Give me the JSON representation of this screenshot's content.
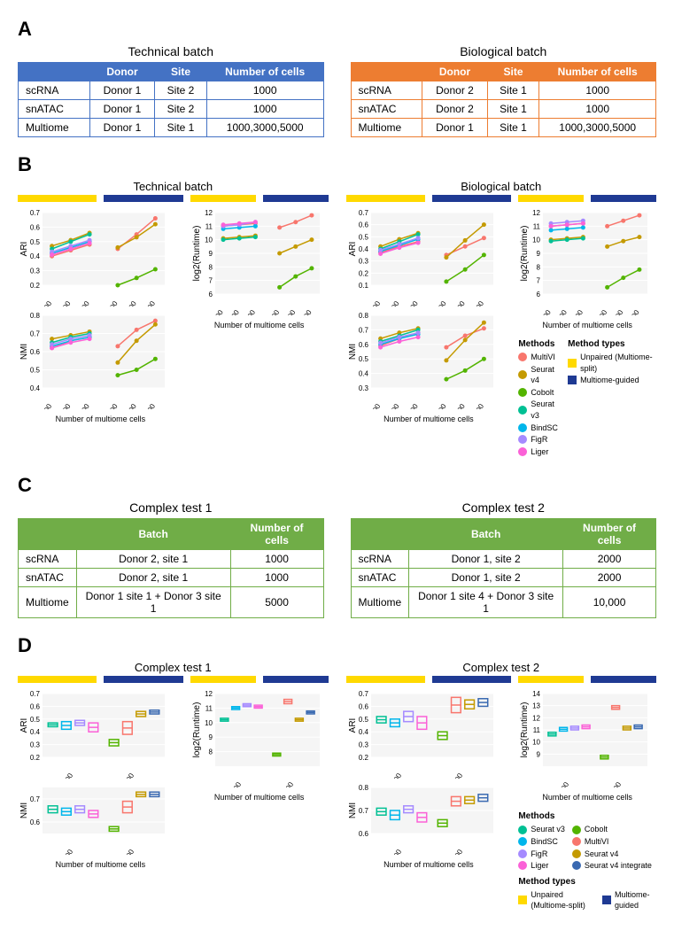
{
  "panelA": {
    "label": "A",
    "left": {
      "title": "Technical batch",
      "columns": [
        "",
        "Donor",
        "Site",
        "Number of cells"
      ],
      "rows": [
        [
          "scRNA",
          "Donor 1",
          "Site 2",
          "1000"
        ],
        [
          "snATAC",
          "Donor 1",
          "Site 2",
          "1000"
        ],
        [
          "Multiome",
          "Donor 1",
          "Site 1",
          "1000,3000,5000"
        ]
      ],
      "border_color": "#4472c4"
    },
    "right": {
      "title": "Biological batch",
      "columns": [
        "",
        "Donor",
        "Site",
        "Number of cells"
      ],
      "rows": [
        [
          "scRNA",
          "Donor 2",
          "Site 1",
          "1000"
        ],
        [
          "snATAC",
          "Donor 2",
          "Site 1",
          "1000"
        ],
        [
          "Multiome",
          "Donor 1",
          "Site 1",
          "1000,3000,5000"
        ]
      ],
      "border_color": "#ed7d31"
    }
  },
  "panelB": {
    "label": "B",
    "x_ticks": [
      "1000",
      "3000",
      "5000",
      "1000",
      "3000",
      "5000"
    ],
    "x_label": "Number of multiome cells",
    "method_types": {
      "unpaired": {
        "label": "Unpaired\n(Multiome-split)",
        "color": "#ffd900"
      },
      "guided": {
        "label": "Multiome-guided",
        "color": "#1f3a93"
      }
    },
    "methods": [
      {
        "name": "MultiVI",
        "color": "#f8766d"
      },
      {
        "name": "Seurat v4",
        "color": "#c49a00"
      },
      {
        "name": "Cobolt",
        "color": "#53b400"
      },
      {
        "name": "Seurat v3",
        "color": "#00c094"
      },
      {
        "name": "BindSC",
        "color": "#00b6eb"
      },
      {
        "name": "FigR",
        "color": "#a58aff"
      },
      {
        "name": "Liger",
        "color": "#fb61d7"
      }
    ],
    "technical": {
      "title": "Technical batch",
      "ari": {
        "ylabel": "ARI",
        "ylim": [
          0.2,
          0.7
        ],
        "yticks": [
          0.2,
          0.3,
          0.4,
          0.5,
          0.6,
          0.7
        ],
        "series": {
          "MultiVI_u": [
            0.4,
            0.44,
            0.48
          ],
          "MultiVI_g": [
            0.45,
            0.55,
            0.66
          ],
          "Seurat v4_u": [
            0.47,
            0.51,
            0.56
          ],
          "Seurat v4_g": [
            0.46,
            0.53,
            0.62
          ],
          "Seurat v3_u": [
            0.45,
            0.5,
            0.55
          ],
          "BindSC_u": [
            0.42,
            0.46,
            0.5
          ],
          "FigR_u": [
            0.43,
            0.47,
            0.51
          ],
          "Liger_u": [
            0.41,
            0.45,
            0.49
          ],
          "Cobolt_g": [
            0.2,
            0.25,
            0.31
          ]
        }
      },
      "nmi": {
        "ylabel": "NMI",
        "ylim": [
          0.4,
          0.8
        ],
        "yticks": [
          0.4,
          0.5,
          0.6,
          0.7,
          0.8
        ],
        "series": {
          "MultiVI_u": [
            0.62,
            0.66,
            0.68
          ],
          "MultiVI_g": [
            0.63,
            0.72,
            0.77
          ],
          "Seurat v4_u": [
            0.67,
            0.69,
            0.71
          ],
          "Seurat v4_g": [
            0.54,
            0.66,
            0.75
          ],
          "Seurat v3_u": [
            0.65,
            0.68,
            0.7
          ],
          "BindSC_u": [
            0.63,
            0.66,
            0.68
          ],
          "FigR_u": [
            0.64,
            0.67,
            0.69
          ],
          "Liger_u": [
            0.62,
            0.65,
            0.67
          ],
          "Cobolt_g": [
            0.47,
            0.5,
            0.56
          ]
        }
      },
      "runtime": {
        "ylabel": "log2(Runtime)",
        "ylim": [
          6,
          12
        ],
        "yticks": [
          6,
          7,
          8,
          9,
          10,
          11,
          12
        ],
        "series": {
          "MultiVI_u": [
            11.0,
            11.1,
            11.2
          ],
          "MultiVI_g": [
            10.9,
            11.3,
            11.8
          ],
          "Seurat v4_u": [
            10.1,
            10.2,
            10.3
          ],
          "Seurat v4_g": [
            9.0,
            9.5,
            10.0
          ],
          "Seurat v3_u": [
            10.0,
            10.1,
            10.2
          ],
          "BindSC_u": [
            10.8,
            10.9,
            11.0
          ],
          "FigR_u": [
            11.0,
            11.1,
            11.3
          ],
          "Liger_u": [
            11.1,
            11.2,
            11.3
          ],
          "Cobolt_g": [
            6.5,
            7.3,
            7.9
          ]
        }
      }
    },
    "biological": {
      "title": "Biological batch",
      "ari": {
        "ylabel": "ARI",
        "ylim": [
          0.1,
          0.7
        ],
        "yticks": [
          0.1,
          0.2,
          0.3,
          0.4,
          0.5,
          0.6,
          0.7
        ],
        "series": {
          "MultiVI_u": [
            0.37,
            0.42,
            0.46
          ],
          "MultiVI_g": [
            0.35,
            0.42,
            0.49
          ],
          "Seurat v4_u": [
            0.42,
            0.48,
            0.53
          ],
          "Seurat v4_g": [
            0.33,
            0.47,
            0.6
          ],
          "Seurat v3_u": [
            0.4,
            0.46,
            0.52
          ],
          "BindSC_u": [
            0.38,
            0.43,
            0.48
          ],
          "FigR_u": [
            0.39,
            0.44,
            0.49
          ],
          "Liger_u": [
            0.36,
            0.41,
            0.45
          ],
          "Cobolt_g": [
            0.13,
            0.23,
            0.35
          ]
        }
      },
      "nmi": {
        "ylabel": "NMI",
        "ylim": [
          0.3,
          0.8
        ],
        "yticks": [
          0.3,
          0.4,
          0.5,
          0.6,
          0.7,
          0.8
        ],
        "series": {
          "MultiVI_u": [
            0.59,
            0.64,
            0.68
          ],
          "MultiVI_g": [
            0.58,
            0.66,
            0.71
          ],
          "Seurat v4_u": [
            0.64,
            0.68,
            0.71
          ],
          "Seurat v4_g": [
            0.49,
            0.63,
            0.75
          ],
          "Seurat v3_u": [
            0.62,
            0.66,
            0.7
          ],
          "BindSC_u": [
            0.6,
            0.64,
            0.67
          ],
          "FigR_u": [
            0.61,
            0.65,
            0.68
          ],
          "Liger_u": [
            0.58,
            0.62,
            0.65
          ],
          "Cobolt_g": [
            0.36,
            0.42,
            0.5
          ]
        }
      },
      "runtime": {
        "ylabel": "log2(Runtime)",
        "ylim": [
          6,
          12
        ],
        "yticks": [
          6,
          7,
          8,
          9,
          10,
          11,
          12
        ],
        "series": {
          "MultiVI_u": [
            11.0,
            11.1,
            11.2
          ],
          "MultiVI_g": [
            11.0,
            11.4,
            11.8
          ],
          "Seurat v4_u": [
            10.0,
            10.1,
            10.2
          ],
          "Seurat v4_g": [
            9.5,
            9.9,
            10.2
          ],
          "Seurat v3_u": [
            9.9,
            10.0,
            10.1
          ],
          "BindSC_u": [
            10.7,
            10.8,
            10.9
          ],
          "FigR_u": [
            11.2,
            11.3,
            11.4
          ],
          "Liger_u": [
            11.0,
            11.1,
            11.2
          ],
          "Cobolt_g": [
            6.5,
            7.2,
            7.8
          ]
        }
      }
    }
  },
  "panelC": {
    "label": "C",
    "left": {
      "title": "Complex test 1",
      "columns": [
        "",
        "Batch",
        "Number of cells"
      ],
      "rows": [
        [
          "scRNA",
          "Donor 2, site 1",
          "1000"
        ],
        [
          "snATAC",
          "Donor 2, site 1",
          "1000"
        ],
        [
          "Multiome",
          "Donor 1 site 1 + Donor 3 site 1",
          "5000"
        ]
      ]
    },
    "right": {
      "title": "Complex test 2",
      "columns": [
        "",
        "Batch",
        "Number of cells"
      ],
      "rows": [
        [
          "scRNA",
          "Donor 1, site 2",
          "2000"
        ],
        [
          "snATAC",
          "Donor 1, site 2",
          "2000"
        ],
        [
          "Multiome",
          "Donor 1 site 4 + Donor 3 site 1",
          "10,000"
        ]
      ]
    }
  },
  "panelD": {
    "label": "D",
    "x_label": "Number of multiome cells",
    "methods": [
      {
        "name": "Seurat v3",
        "color": "#00c094"
      },
      {
        "name": "BindSC",
        "color": "#00b6eb"
      },
      {
        "name": "FigR",
        "color": "#a58aff"
      },
      {
        "name": "Liger",
        "color": "#fb61d7"
      },
      {
        "name": "Cobolt",
        "color": "#53b400"
      },
      {
        "name": "MultiVI",
        "color": "#f8766d"
      },
      {
        "name": "Seurat v4",
        "color": "#c49a00"
      },
      {
        "name": "Seurat v4 integrate",
        "color": "#3969b1"
      }
    ],
    "method_types": {
      "unpaired": {
        "label": "Unpaired\n(Multiome-split)",
        "color": "#ffd900"
      },
      "guided": {
        "label": "Multiome-guided",
        "color": "#1f3a93"
      }
    },
    "test1": {
      "title": "Complex test 1",
      "x_ticks": [
        "5000",
        "5000"
      ],
      "ari": {
        "ylabel": "ARI",
        "ylim": [
          0.2,
          0.7
        ],
        "yticks": [
          0.2,
          0.3,
          0.4,
          0.5,
          0.6,
          0.7
        ],
        "boxes_u": {
          "Seurat v3": [
            0.44,
            0.47
          ],
          "BindSC": [
            0.42,
            0.48
          ],
          "FigR": [
            0.45,
            0.49
          ],
          "Liger": [
            0.4,
            0.47
          ]
        },
        "boxes_g": {
          "Cobolt": [
            0.29,
            0.34
          ],
          "MultiVI": [
            0.38,
            0.48
          ],
          "Seurat v4": [
            0.52,
            0.56
          ],
          "Seurat v4 integrate": [
            0.54,
            0.57
          ]
        }
      },
      "nmi": {
        "ylabel": "NMI",
        "ylim": [
          0.55,
          0.75
        ],
        "yticks": [
          0.6,
          0.7
        ],
        "boxes_u": {
          "Seurat v3": [
            0.64,
            0.67
          ],
          "BindSC": [
            0.63,
            0.66
          ],
          "FigR": [
            0.64,
            0.67
          ],
          "Liger": [
            0.62,
            0.65
          ]
        },
        "boxes_g": {
          "Cobolt": [
            0.56,
            0.58
          ],
          "MultiVI": [
            0.64,
            0.69
          ],
          "Seurat v4": [
            0.71,
            0.73
          ],
          "Seurat v4 integrate": [
            0.71,
            0.73
          ]
        }
      },
      "runtime": {
        "ylabel": "log2(Runtime)",
        "ylim": [
          7,
          12
        ],
        "yticks": [
          8,
          9,
          10,
          11,
          12
        ],
        "boxes_u": {
          "Seurat v3": [
            10.1,
            10.3
          ],
          "BindSC": [
            10.9,
            11.1
          ],
          "FigR": [
            11.1,
            11.3
          ],
          "Liger": [
            11.0,
            11.2
          ]
        },
        "boxes_g": {
          "Cobolt": [
            7.7,
            7.9
          ],
          "MultiVI": [
            11.3,
            11.6
          ],
          "Seurat v4": [
            10.1,
            10.3
          ],
          "Seurat v4 integrate": [
            10.6,
            10.8
          ]
        }
      }
    },
    "test2": {
      "title": "Complex test 2",
      "x_ticks": [
        "10000",
        "10000"
      ],
      "ari": {
        "ylabel": "ARI",
        "ylim": [
          0.2,
          0.7
        ],
        "yticks": [
          0.2,
          0.3,
          0.4,
          0.5,
          0.6,
          0.7
        ],
        "boxes_u": {
          "Seurat v3": [
            0.47,
            0.52
          ],
          "BindSC": [
            0.44,
            0.5
          ],
          "FigR": [
            0.48,
            0.56
          ],
          "Liger": [
            0.42,
            0.52
          ]
        },
        "boxes_g": {
          "Cobolt": [
            0.34,
            0.4
          ],
          "MultiVI": [
            0.55,
            0.67
          ],
          "Seurat v4": [
            0.58,
            0.65
          ],
          "Seurat v4 integrate": [
            0.6,
            0.66
          ]
        }
      },
      "nmi": {
        "ylabel": "NMI",
        "ylim": [
          0.6,
          0.8
        ],
        "yticks": [
          0.6,
          0.7,
          0.8
        ],
        "boxes_u": {
          "Seurat v3": [
            0.68,
            0.71
          ],
          "BindSC": [
            0.66,
            0.7
          ],
          "FigR": [
            0.69,
            0.72
          ],
          "Liger": [
            0.65,
            0.69
          ]
        },
        "boxes_g": {
          "Cobolt": [
            0.63,
            0.66
          ],
          "MultiVI": [
            0.72,
            0.76
          ],
          "Seurat v4": [
            0.73,
            0.76
          ],
          "Seurat v4 integrate": [
            0.74,
            0.77
          ]
        }
      },
      "runtime": {
        "ylabel": "log2(Runtime)",
        "ylim": [
          8,
          14
        ],
        "yticks": [
          9,
          10,
          11,
          12,
          13,
          14
        ],
        "boxes_u": {
          "Seurat v3": [
            10.5,
            10.8
          ],
          "BindSC": [
            10.9,
            11.2
          ],
          "FigR": [
            11.0,
            11.3
          ],
          "Liger": [
            11.1,
            11.4
          ]
        },
        "boxes_g": {
          "Cobolt": [
            8.6,
            8.9
          ],
          "MultiVI": [
            12.7,
            13.0
          ],
          "Seurat v4": [
            11.0,
            11.3
          ],
          "Seurat v4 integrate": [
            11.1,
            11.4
          ]
        }
      }
    }
  }
}
